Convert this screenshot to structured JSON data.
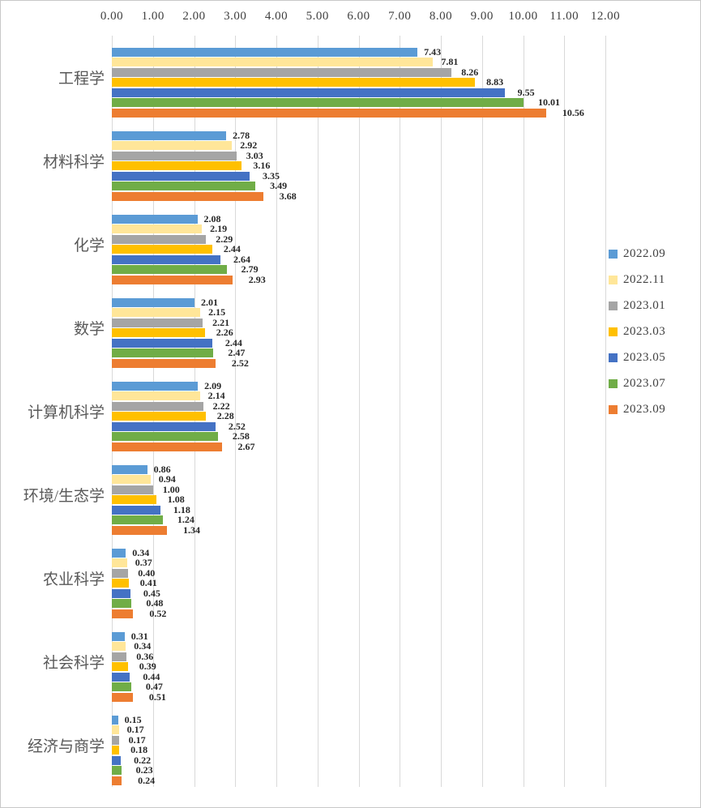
{
  "chart_data": {
    "type": "bar",
    "orientation": "horizontal-grouped",
    "title": "",
    "categories": [
      "工程学",
      "材料科学",
      "化学",
      "数学",
      "计算机科学",
      "环境/生态学",
      "农业科学",
      "社会科学",
      "经济与商学"
    ],
    "series": [
      {
        "name": "2022.09",
        "color": "#5B9BD5",
        "values": [
          7.43,
          2.78,
          2.08,
          2.01,
          2.09,
          0.86,
          0.34,
          0.31,
          0.15
        ]
      },
      {
        "name": "2022.11",
        "color": "#FFE699",
        "values": [
          7.81,
          2.92,
          2.19,
          2.15,
          2.14,
          0.94,
          0.37,
          0.34,
          0.17
        ]
      },
      {
        "name": "2023.01",
        "color": "#A5A5A5",
        "values": [
          8.26,
          3.03,
          2.29,
          2.21,
          2.22,
          1.0,
          0.4,
          0.36,
          0.17
        ]
      },
      {
        "name": "2023.03",
        "color": "#FFC000",
        "values": [
          8.83,
          3.16,
          2.44,
          2.26,
          2.28,
          1.08,
          0.41,
          0.39,
          0.18
        ]
      },
      {
        "name": "2023.05",
        "color": "#4472C4",
        "values": [
          9.55,
          3.35,
          2.64,
          2.44,
          2.52,
          1.18,
          0.45,
          0.44,
          0.22
        ]
      },
      {
        "name": "2023.07",
        "color": "#70AD47",
        "values": [
          10.01,
          3.49,
          2.79,
          2.47,
          2.58,
          1.24,
          0.48,
          0.47,
          0.23
        ]
      },
      {
        "name": "2023.09",
        "color": "#ED7D31",
        "values": [
          10.56,
          3.68,
          2.93,
          2.52,
          2.67,
          1.34,
          0.52,
          0.51,
          0.24
        ]
      }
    ],
    "x_axis": {
      "position": "top",
      "min": 0,
      "max": 12,
      "step": 1,
      "tick_labels": [
        "0.00",
        "1.00",
        "2.00",
        "3.00",
        "4.00",
        "5.00",
        "6.00",
        "7.00",
        "8.00",
        "9.00",
        "10.00",
        "11.00",
        "12.00"
      ]
    },
    "value_labels": {
      "visible": true,
      "format": "0.00",
      "position": "outside-end"
    },
    "legend_position": "right",
    "grid": {
      "vertical": true,
      "color": "#D9D9D9"
    },
    "frame_border_color": "#C8C8C8"
  }
}
